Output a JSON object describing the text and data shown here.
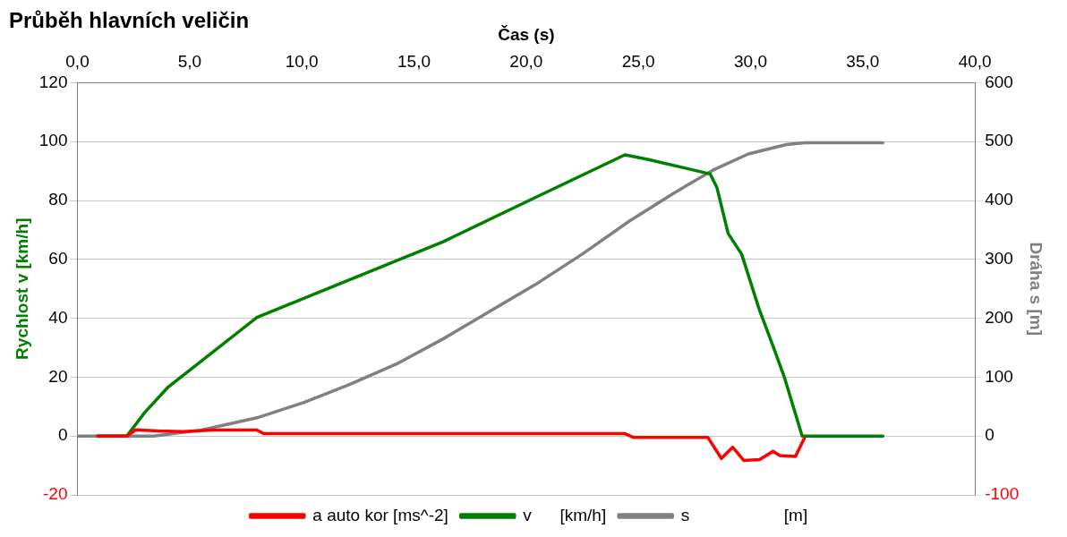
{
  "chart_data": {
    "type": "line",
    "title": "Průběh hlavních veličin",
    "xlabel": "Čas (s)",
    "ylabel": "Rychlost v [km/h]",
    "y2label": "Dráha s [m]",
    "xlim": [
      0,
      40
    ],
    "xticks": [
      {
        "value": 0,
        "label": "0,0"
      },
      {
        "value": 5,
        "label": "5,0"
      },
      {
        "value": 10,
        "label": "10,0"
      },
      {
        "value": 15,
        "label": "15,0"
      },
      {
        "value": 20,
        "label": "20,0"
      },
      {
        "value": 25,
        "label": "25,0"
      },
      {
        "value": 30,
        "label": "30,0"
      },
      {
        "value": 35,
        "label": "35,0"
      },
      {
        "value": 40,
        "label": "40,0"
      }
    ],
    "ylim": [
      -20,
      120
    ],
    "yticks": [
      -20,
      0,
      20,
      40,
      60,
      80,
      100,
      120
    ],
    "y2lim": [
      -100,
      600
    ],
    "y2ticks": [
      -100,
      0,
      100,
      200,
      300,
      400,
      500,
      600
    ],
    "grid": "y",
    "legend": "bottom",
    "marker": "none",
    "line_style": "solid",
    "series": [
      {
        "name": "a auto kor [ms^-2]",
        "color": "#ff0000",
        "x": [
          0.9,
          2.2,
          2.6,
          3.6,
          4.7,
          6.0,
          8.0,
          8.3,
          12.0,
          16.0,
          20.0,
          24.4,
          24.8,
          28.1,
          28.7,
          29.2,
          29.7,
          30.4,
          31.0,
          31.3,
          32.0,
          32.4
        ],
        "values": [
          0,
          0,
          2.1,
          1.7,
          1.5,
          2.0,
          2.0,
          0.8,
          0.8,
          0.8,
          0.8,
          0.8,
          -0.5,
          -0.5,
          -7.6,
          -3.8,
          -8.3,
          -8,
          -5.2,
          -6.6,
          -6.9,
          -0.7
        ]
      },
      {
        "name": "v      [km/h]",
        "color": "#008000",
        "x": [
          0.9,
          2.2,
          3.0,
          4.05,
          5.5,
          8.0,
          12.1,
          16.3,
          20.4,
          24.4,
          25.4,
          28.2,
          28.5,
          29.0,
          29.6,
          30.4,
          31.0,
          31.5,
          32.3,
          35.9
        ],
        "values": [
          0,
          0,
          8,
          16.7,
          25.3,
          40.3,
          53,
          66,
          81,
          95.5,
          94,
          89,
          84.4,
          68.8,
          61.8,
          42.7,
          30.6,
          20.1,
          0,
          0
        ]
      },
      {
        "name": "s                    [m]",
        "color": "#808080",
        "axis": "y2",
        "x": [
          0,
          3.4,
          5.5,
          8.0,
          10.1,
          12.1,
          14.2,
          16.3,
          18.3,
          20.4,
          22.5,
          24.6,
          26.6,
          28.3,
          29.9,
          31.6,
          32.4,
          35.9
        ],
        "values": [
          0,
          0,
          10,
          31,
          57,
          87,
          122,
          165,
          210,
          257,
          309,
          365,
          413,
          451,
          479,
          495,
          498,
          498
        ]
      }
    ]
  }
}
